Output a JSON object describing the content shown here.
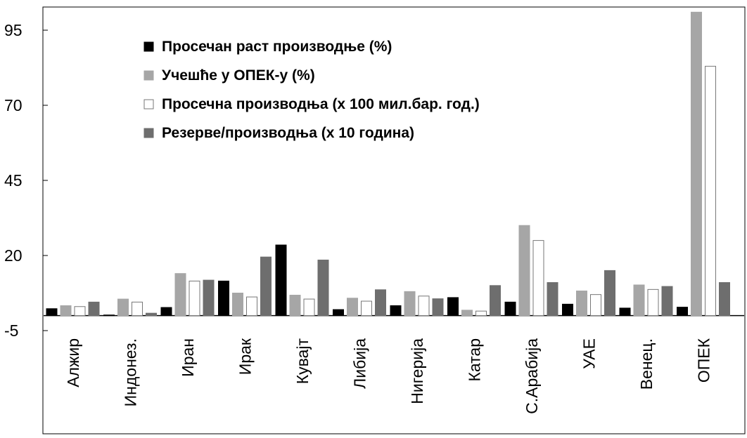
{
  "chart_data": {
    "type": "bar",
    "categories": [
      "Алжир",
      "Индонез.",
      "Иран",
      "Ирак",
      "Кувајт",
      "Либија",
      "Нигерија",
      "Катар",
      "С.Арабија",
      "УАЕ",
      "Венец.",
      "ОПЕК"
    ],
    "series": [
      {
        "name": "Просечан раст производње (%)",
        "color": "#000000",
        "values": [
          2.3,
          0.2,
          2.7,
          11.5,
          23.5,
          2.0,
          3.3,
          6.0,
          4.5,
          3.8,
          2.5,
          2.8
        ]
      },
      {
        "name": "Учешће у ОПЕК-у (%)",
        "color": "#a6a6a6",
        "values": [
          3.3,
          5.5,
          14,
          7.5,
          6.8,
          5.8,
          8,
          1.8,
          30,
          8.2,
          10.2,
          101
        ]
      },
      {
        "name": "Просечна производња (x 100 мил.бар. год.)",
        "color": "#ffffff",
        "values": [
          3.0,
          4.5,
          11.5,
          6.2,
          5.5,
          4.8,
          6.5,
          1.5,
          25,
          7,
          8.7,
          83
        ]
      },
      {
        "name": "Резерве/производња (x 10 година)",
        "color": "#6e6e6e",
        "values": [
          4.5,
          0.8,
          11.8,
          19.5,
          18.5,
          8.6,
          5.6,
          10,
          11,
          15,
          9.7,
          11
        ]
      }
    ],
    "y_ticks": [
      "95",
      "70",
      "45",
      "20",
      "-5"
    ],
    "ylim": [
      -5,
      105
    ],
    "xlabel": "",
    "ylabel": "",
    "legend_position": "top-left",
    "grid": false
  }
}
